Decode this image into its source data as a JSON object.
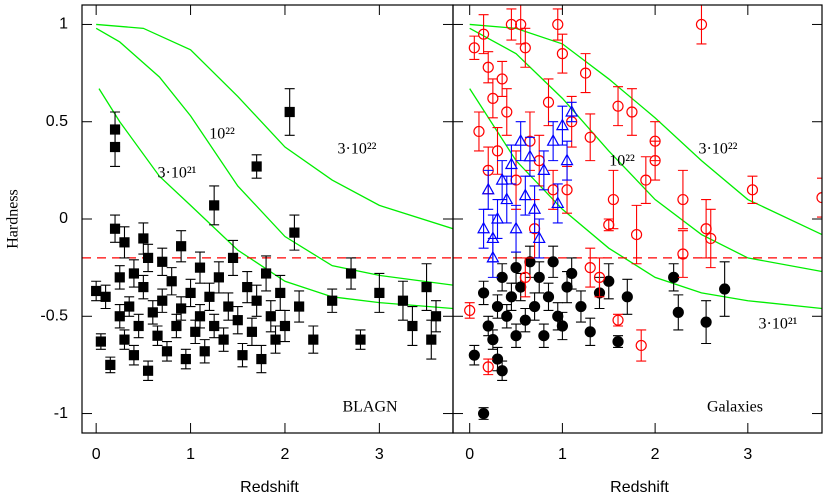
{
  "chart_data": [
    {
      "type": "scatter",
      "ylabel": "Hardness",
      "xlabel": "Redshift",
      "xlim": [
        -0.15,
        3.78
      ],
      "ylim": [
        -1.1,
        1.1
      ],
      "xticks": [
        0,
        1,
        2,
        3
      ],
      "yticks": [
        -1,
        -0.5,
        0,
        0.5,
        1
      ],
      "hline": {
        "value": -0.2,
        "color": "#ff0000"
      },
      "curves": [
        {
          "color": "#00ee00",
          "x": [
            0,
            0.5,
            1,
            1.5,
            2,
            2.5,
            3,
            3.78
          ],
          "values": [
            1.0,
            0.98,
            0.87,
            0.63,
            0.37,
            0.2,
            0.07,
            -0.05
          ]
        },
        {
          "color": "#00ee00",
          "x": [
            0,
            0.25,
            0.67,
            1,
            1.5,
            2,
            2.5,
            3,
            3.78
          ],
          "values": [
            0.98,
            0.91,
            0.73,
            0.53,
            0.17,
            -0.09,
            -0.24,
            -0.29,
            -0.34
          ]
        },
        {
          "color": "#00ee00",
          "x": [
            0.03,
            0.25,
            0.67,
            1,
            1.5,
            2,
            2.5,
            3,
            3.78
          ],
          "values": [
            0.67,
            0.5,
            0.22,
            0.07,
            -0.16,
            -0.32,
            -0.4,
            -0.43,
            -0.46
          ]
        }
      ],
      "annotations": [
        {
          "text": "10²²",
          "color": "#00dd00"
        },
        {
          "text": "3·10²²",
          "color": "#00dd00"
        },
        {
          "text": "3·10²¹",
          "color": "#00dd00"
        },
        {
          "text": "BLAGN",
          "color": "#0000ee"
        }
      ],
      "series": [
        {
          "color": "#000000",
          "marker": "square",
          "filled": true,
          "x": [
            0.2,
            0.2,
            1.25,
            1.7,
            2.05,
            2.1,
            2.7,
            3.0,
            3.25,
            3.5,
            3.6,
            3.35,
            3.55,
            2.3,
            2.8,
            2.5,
            0.0,
            0.05,
            0.1,
            0.15,
            0.2,
            0.25,
            0.3,
            0.3,
            0.35,
            0.4,
            0.4,
            0.45,
            0.5,
            0.5,
            0.55,
            0.6,
            0.65,
            0.7,
            0.7,
            0.75,
            0.8,
            0.85,
            0.9,
            0.9,
            0.95,
            1.0,
            1.05,
            1.1,
            1.1,
            1.15,
            1.2,
            1.25,
            1.3,
            1.35,
            1.4,
            1.45,
            1.5,
            1.55,
            1.6,
            1.65,
            1.7,
            1.75,
            1.8,
            1.85,
            1.9,
            1.95,
            2.0,
            2.15,
            0.55,
            0.25
          ],
          "values": [
            0.46,
            0.37,
            0.07,
            0.27,
            0.55,
            -0.07,
            -0.28,
            -0.38,
            -0.42,
            -0.35,
            -0.5,
            -0.55,
            -0.62,
            -0.62,
            -0.62,
            -0.42,
            -0.37,
            -0.63,
            -0.4,
            -0.75,
            -0.05,
            -0.5,
            -0.12,
            -0.62,
            -0.45,
            -0.28,
            -0.7,
            -0.55,
            -0.1,
            -0.35,
            -0.78,
            -0.48,
            -0.6,
            -0.22,
            -0.42,
            -0.68,
            -0.32,
            -0.55,
            -0.14,
            -0.46,
            -0.72,
            -0.38,
            -0.58,
            -0.25,
            -0.5,
            -0.68,
            -0.4,
            -0.55,
            -0.3,
            -0.62,
            -0.45,
            -0.2,
            -0.52,
            -0.7,
            -0.35,
            -0.58,
            -0.42,
            -0.72,
            -0.28,
            -0.5,
            -0.62,
            -0.38,
            -0.55,
            -0.45,
            -0.2,
            -0.3
          ],
          "errors": [
            0.09,
            0.1,
            0.1,
            0.06,
            0.12,
            0.09,
            0.08,
            0.1,
            0.1,
            0.12,
            0.08,
            0.1,
            0.1,
            0.07,
            0.05,
            0.06,
            0.05,
            0.04,
            0.06,
            0.04,
            0.07,
            0.06,
            0.08,
            0.05,
            0.05,
            0.07,
            0.05,
            0.06,
            0.08,
            0.06,
            0.05,
            0.06,
            0.05,
            0.07,
            0.06,
            0.05,
            0.07,
            0.06,
            0.08,
            0.06,
            0.05,
            0.07,
            0.06,
            0.08,
            0.06,
            0.06,
            0.07,
            0.06,
            0.08,
            0.06,
            0.07,
            0.09,
            0.07,
            0.06,
            0.08,
            0.07,
            0.08,
            0.07,
            0.09,
            0.08,
            0.07,
            0.09,
            0.08,
            0.08,
            0.07,
            0.06
          ]
        }
      ]
    },
    {
      "type": "scatter",
      "xlabel": "Redshift",
      "xlim": [
        -0.18,
        3.8
      ],
      "ylim": [
        -1.1,
        1.1
      ],
      "xticks": [
        0,
        1,
        2,
        3
      ],
      "yticks": [
        -1,
        -0.5,
        0,
        0.5,
        1
      ],
      "hline": {
        "value": -0.2,
        "color": "#ff0000"
      },
      "curves": [
        {
          "color": "#00ee00",
          "x": [
            0,
            0.5,
            1,
            1.5,
            2,
            2.5,
            3,
            3.8
          ],
          "values": [
            1.0,
            0.98,
            0.9,
            0.72,
            0.52,
            0.3,
            0.1,
            -0.08
          ]
        },
        {
          "color": "#00ee00",
          "x": [
            0,
            0.5,
            1,
            1.5,
            2,
            2.5,
            3,
            3.8
          ],
          "values": [
            0.98,
            0.85,
            0.62,
            0.35,
            0.1,
            -0.08,
            -0.2,
            -0.27
          ]
        },
        {
          "color": "#00ee00",
          "x": [
            0,
            0.5,
            1,
            1.5,
            2,
            2.5,
            3,
            3.8
          ],
          "values": [
            0.67,
            0.3,
            0.05,
            -0.15,
            -0.3,
            -0.38,
            -0.42,
            -0.46
          ]
        }
      ],
      "annotations": [
        {
          "text": "10²²",
          "color": "#00dd00"
        },
        {
          "text": "3·10²²",
          "color": "#00dd00"
        },
        {
          "text": "3·10²¹",
          "color": "#00dd00"
        },
        {
          "text": "Galaxies",
          "color": "#0000ee"
        }
      ],
      "series": [
        {
          "color": "#000000",
          "marker": "circle",
          "filled": true,
          "x": [
            0.05,
            0.15,
            0.15,
            0.2,
            0.25,
            0.3,
            0.3,
            0.35,
            0.35,
            0.4,
            0.45,
            0.5,
            0.5,
            0.55,
            0.6,
            0.65,
            0.7,
            0.75,
            0.8,
            0.85,
            0.9,
            0.95,
            1.0,
            1.05,
            1.1,
            1.2,
            1.3,
            1.4,
            1.5,
            1.6,
            1.7,
            2.2,
            2.25,
            2.55,
            2.75
          ],
          "values": [
            -0.7,
            -1.0,
            -0.38,
            -0.55,
            -0.62,
            -0.72,
            -0.45,
            -0.3,
            -0.78,
            -0.5,
            -0.4,
            -0.25,
            -0.6,
            -0.35,
            -0.52,
            -0.22,
            -0.45,
            -0.3,
            -0.6,
            -0.4,
            -0.22,
            -0.5,
            -0.55,
            -0.35,
            -0.28,
            -0.45,
            -0.58,
            -0.38,
            -0.32,
            -0.63,
            -0.4,
            -0.3,
            -0.48,
            -0.53,
            -0.36
          ],
          "errors": [
            0.05,
            0.03,
            0.06,
            0.05,
            0.05,
            0.06,
            0.06,
            0.07,
            0.05,
            0.06,
            0.07,
            0.08,
            0.06,
            0.07,
            0.06,
            0.08,
            0.07,
            0.08,
            0.06,
            0.07,
            0.08,
            0.07,
            0.07,
            0.08,
            0.08,
            0.08,
            0.07,
            0.08,
            0.09,
            0.03,
            0.09,
            0.07,
            0.09,
            0.11,
            0.14
          ]
        },
        {
          "color": "#ff0000",
          "marker": "circle",
          "filled": false,
          "x": [
            0.05,
            0.1,
            0.15,
            0.2,
            0.2,
            0.25,
            0.3,
            0.35,
            0.4,
            0.45,
            0.5,
            0.55,
            0.6,
            0.65,
            0.7,
            0.75,
            0.85,
            0.95,
            1.0,
            1.05,
            1.1,
            1.25,
            1.3,
            1.4,
            1.55,
            1.6,
            1.75,
            1.8,
            1.85,
            1.9,
            2.0,
            2.0,
            2.3,
            2.5,
            2.55,
            2.6,
            2.3,
            3.05,
            3.8,
            0.0,
            0.2,
            0.6,
            1.6,
            1.5,
            1.3,
            0.9
          ],
          "values": [
            0.88,
            0.45,
            0.95,
            0.78,
            0.25,
            0.62,
            0.35,
            0.72,
            0.55,
            1.0,
            0.2,
            1.0,
            0.88,
            0.4,
            -0.05,
            0.3,
            0.6,
            1.0,
            0.85,
            0.15,
            0.5,
            0.75,
            0.42,
            -0.3,
            0.1,
            0.58,
            0.55,
            -0.08,
            -0.65,
            0.2,
            0.3,
            0.4,
            0.1,
            1.0,
            -0.05,
            -0.1,
            -0.18,
            0.15,
            0.11,
            -0.47,
            -0.76,
            -0.3,
            -0.52,
            -0.03,
            -0.25,
            0.15
          ],
          "errors": [
            0.06,
            0.1,
            0.1,
            0.08,
            0.12,
            0.1,
            0.12,
            0.09,
            0.12,
            0.08,
            0.15,
            0.1,
            0.1,
            0.15,
            0.15,
            0.13,
            0.12,
            0.08,
            0.1,
            0.12,
            0.13,
            0.1,
            0.12,
            0.1,
            0.15,
            0.1,
            0.12,
            0.15,
            0.08,
            0.12,
            0.1,
            0.1,
            0.15,
            0.1,
            0.15,
            0.15,
            0.12,
            0.07,
            0.1,
            0.04,
            0.04,
            0.1,
            0.03,
            0.03,
            0.1,
            0.1
          ]
        },
        {
          "color": "#0000ff",
          "marker": "triangle",
          "filled": false,
          "x": [
            0.15,
            0.2,
            0.25,
            0.3,
            0.35,
            0.4,
            0.45,
            0.5,
            0.55,
            0.6,
            0.65,
            0.7,
            0.75,
            0.8,
            0.9,
            0.95,
            1.0,
            1.05,
            1.1,
            0.25
          ],
          "values": [
            -0.05,
            0.15,
            -0.1,
            0.0,
            0.2,
            0.1,
            0.28,
            -0.05,
            0.4,
            0.12,
            0.32,
            0.05,
            -0.1,
            0.25,
            0.4,
            0.08,
            0.48,
            0.3,
            0.55,
            -0.2
          ],
          "errors": [
            0.1,
            0.1,
            0.12,
            0.1,
            0.1,
            0.12,
            0.1,
            0.12,
            0.1,
            0.1,
            0.1,
            0.12,
            0.1,
            0.1,
            0.1,
            0.1,
            0.1,
            0.1,
            0.05,
            0.1
          ]
        }
      ]
    }
  ]
}
